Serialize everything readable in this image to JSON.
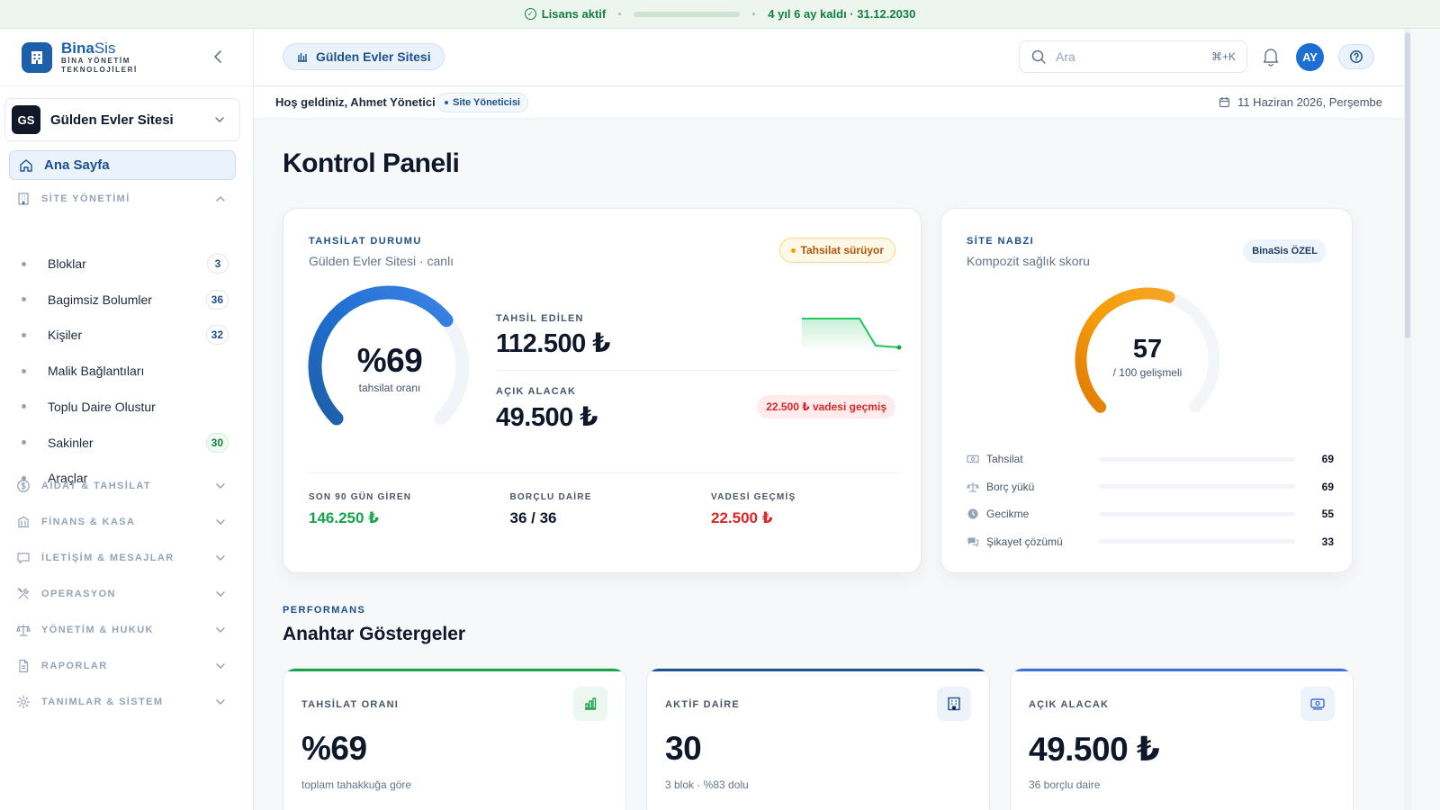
{
  "license": {
    "status": "Lisans aktif",
    "remaining_fraction": 0.9,
    "remaining_text": "4 yıl 6 ay kaldı · 31.12.2030"
  },
  "brand": {
    "name_bold": "Bina",
    "name_light": "Sis",
    "tagline": "BİNA YÖNETİM TEKNOLOJİLERİ"
  },
  "site_selector": {
    "initials": "GS",
    "name": "Gülden Evler Sitesi"
  },
  "sidebar": {
    "home": "Ana Sayfa",
    "site_section": "SİTE YÖNETİMİ",
    "site_items": [
      {
        "label": "Bloklar",
        "count": "3"
      },
      {
        "label": "Bagimsiz Bolumler",
        "count": "36"
      },
      {
        "label": "Kişiler",
        "count": "32"
      },
      {
        "label": "Malik Bağlantıları"
      },
      {
        "label": "Toplu Daire Olustur"
      },
      {
        "label": "Sakinler",
        "count": "30"
      },
      {
        "label": "Araçlar"
      }
    ],
    "sections": [
      "AİDAT & TAHSİLAT",
      "FİNANS & KASA",
      "İLETİŞİM & MESAJLAR",
      "OPERASYON",
      "YÖNETİM & HUKUK",
      "RAPORLAR",
      "TANIMLAR & SİSTEM"
    ]
  },
  "header": {
    "site_chip": "Gülden Evler Sitesi",
    "search_placeholder": "Ara",
    "search_shortcut": "⌘+K",
    "avatar_initials": "AY"
  },
  "subheader": {
    "welcome": "Hoş geldiniz, Ahmet Yönetici",
    "role": "Site Yöneticisi",
    "date": "11 Haziran 2026, Perşembe"
  },
  "page_title": "Kontrol Paneli",
  "collection": {
    "kicker": "TAHSİLAT DURUMU",
    "subtitle": "Gülden Evler Sitesi · canlı",
    "badge": "Tahsilat sürüyor",
    "gauge_value": 0.69,
    "gauge_text": "%69",
    "gauge_caption": "tahsilat oranı",
    "collected_label": "TAHSİL EDİLEN",
    "collected_value": "112.500 ₺",
    "open_label": "AÇIK ALACAK",
    "open_value": "49.500 ₺",
    "overdue_badge": "22.500 ₺ vadesi geçmiş",
    "stats": [
      {
        "label": "SON 90 GÜN GİREN",
        "value": "146.250 ₺",
        "color": "#16a34a"
      },
      {
        "label": "BORÇLU DAİRE",
        "value": "36 / 36",
        "color": "#0f172a"
      },
      {
        "label": "VADESİ GEÇMİŞ",
        "value": "22.500 ₺",
        "color": "#dc2626"
      }
    ]
  },
  "pulse": {
    "kicker": "SİTE NABZI",
    "subtitle": "Kompozit sağlık skoru",
    "badge": "BinaSis ÖZEL",
    "score": "57",
    "score_fraction": 0.57,
    "score_caption": "/ 100 gelişmeli",
    "rows": [
      {
        "label": "Tahsilat",
        "value": "69",
        "fraction": 0.69,
        "color": "#f59e0b",
        "icon": "money-icon"
      },
      {
        "label": "Borç yükü",
        "value": "69",
        "fraction": 0.69,
        "color": "#f59e0b",
        "icon": "scale-icon"
      },
      {
        "label": "Gecikme",
        "value": "55",
        "fraction": 0.55,
        "color": "#f59e0b",
        "icon": "clock-icon"
      },
      {
        "label": "Şikayet çözümü",
        "value": "33",
        "fraction": 0.33,
        "color": "#ef4444",
        "icon": "chat-icon"
      }
    ]
  },
  "performance": {
    "kicker": "PERFORMANS",
    "title": "Anahtar Göstergeler",
    "kpis": [
      {
        "label": "TAHSİLAT ORANI",
        "value": "%69",
        "sub": "toplam tahakkuğa göre",
        "accent": "#16a34a",
        "icon": "bar-chart-icon"
      },
      {
        "label": "AKTİF DAİRE",
        "value": "30",
        "sub": "3 blok · %83 dolu",
        "accent": "#1e4f8f",
        "icon": "building-icon"
      },
      {
        "label": "AÇIK ALACAK",
        "value": "49.500 ₺",
        "sub": "36 borçlu daire",
        "accent": "#3b6fd1",
        "icon": "banknote-icon"
      }
    ]
  }
}
